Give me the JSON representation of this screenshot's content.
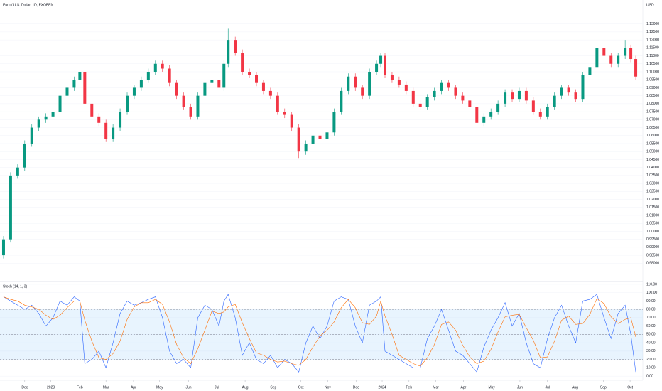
{
  "chart_data": [
    {
      "type": "candlestick",
      "title": "Euro / U.S. Dollar, 1D, FXOPEN",
      "y_label": "USD",
      "up_color": "#089981",
      "down_color": "#f23645",
      "xlim": [
        -5,
        905
      ],
      "ylim": [
        0.969,
        1.145
      ],
      "yticks": [
        {
          "value": 0.98,
          "label": "0.98000"
        },
        {
          "value": 0.985,
          "label": "0.98500"
        },
        {
          "value": 0.99,
          "label": "0.99000"
        },
        {
          "value": 0.995,
          "label": "0.99500"
        },
        {
          "value": 1.0,
          "label": "1.00000"
        },
        {
          "value": 1.005,
          "label": "1.00500"
        },
        {
          "value": 1.01,
          "label": "1.01000"
        },
        {
          "value": 1.015,
          "label": "1.01500"
        },
        {
          "value": 1.02,
          "label": "1.02000"
        },
        {
          "value": 1.025,
          "label": "1.02500"
        },
        {
          "value": 1.03,
          "label": "1.03000"
        },
        {
          "value": 1.035,
          "label": "1.03500"
        },
        {
          "value": 1.04,
          "label": "1.04000"
        },
        {
          "value": 1.045,
          "label": "1.04500"
        },
        {
          "value": 1.05,
          "label": "1.05000"
        },
        {
          "value": 1.055,
          "label": "1.05500"
        },
        {
          "value": 1.06,
          "label": "1.06000"
        },
        {
          "value": 1.065,
          "label": "1.06500"
        },
        {
          "value": 1.07,
          "label": "1.07000"
        },
        {
          "value": 1.075,
          "label": "1.07500"
        },
        {
          "value": 1.08,
          "label": "1.08000"
        },
        {
          "value": 1.085,
          "label": "1.08500"
        },
        {
          "value": 1.09,
          "label": "1.09000"
        },
        {
          "value": 1.095,
          "label": "1.09500"
        },
        {
          "value": 1.1,
          "label": "1.10000"
        },
        {
          "value": 1.105,
          "label": "1.10500"
        },
        {
          "value": 1.11,
          "label": "1.11000"
        },
        {
          "value": 1.115,
          "label": "1.11500"
        },
        {
          "value": 1.12,
          "label": "1.12000"
        },
        {
          "value": 1.125,
          "label": "1.12500"
        },
        {
          "value": 1.13,
          "label": "1.13000"
        }
      ],
      "x": [
        0,
        10,
        20,
        30,
        40,
        50,
        60,
        70,
        80,
        90,
        100,
        108,
        115,
        125,
        135,
        145,
        155,
        165,
        175,
        185,
        195,
        205,
        215,
        225,
        235,
        245,
        255,
        265,
        275,
        285,
        295,
        305,
        312,
        318,
        328,
        338,
        348,
        358,
        368,
        378,
        388,
        398,
        408,
        418,
        428,
        438,
        448,
        458,
        468,
        478,
        488,
        498,
        508,
        518,
        528,
        534,
        540,
        550,
        560,
        570,
        580,
        590,
        600,
        610,
        620,
        630,
        640,
        650,
        660,
        670,
        680,
        690,
        700,
        710,
        720,
        730,
        740,
        750,
        760,
        770,
        780,
        790,
        800,
        810,
        820,
        830,
        840,
        850,
        860,
        870,
        880,
        888,
        895
      ],
      "open": [
        0.985,
        0.995,
        1.035,
        1.04,
        1.055,
        1.065,
        1.07,
        1.072,
        1.075,
        1.085,
        1.09,
        1.095,
        1.1,
        1.08,
        1.072,
        1.068,
        1.058,
        1.065,
        1.075,
        1.085,
        1.09,
        1.095,
        1.1,
        1.105,
        1.102,
        1.093,
        1.085,
        1.078,
        1.072,
        1.085,
        1.093,
        1.095,
        1.09,
        1.105,
        1.12,
        1.112,
        1.1,
        1.098,
        1.093,
        1.088,
        1.085,
        1.075,
        1.073,
        1.065,
        1.05,
        1.055,
        1.06,
        1.058,
        1.062,
        1.075,
        1.088,
        1.097,
        1.09,
        1.085,
        1.1,
        1.105,
        1.11,
        1.098,
        1.095,
        1.092,
        1.088,
        1.08,
        1.078,
        1.084,
        1.088,
        1.093,
        1.09,
        1.085,
        1.082,
        1.078,
        1.068,
        1.072,
        1.075,
        1.08,
        1.087,
        1.083,
        1.088,
        1.082,
        1.075,
        1.072,
        1.078,
        1.085,
        1.09,
        1.087,
        1.083,
        1.098,
        1.103,
        1.115,
        1.11,
        1.105,
        1.11,
        1.115,
        1.108
      ],
      "high": [
        0.997,
        1.037,
        1.042,
        1.057,
        1.067,
        1.072,
        1.074,
        1.077,
        1.087,
        1.092,
        1.097,
        1.103,
        1.102,
        1.082,
        1.074,
        1.07,
        1.067,
        1.077,
        1.087,
        1.092,
        1.097,
        1.102,
        1.107,
        1.107,
        1.104,
        1.095,
        1.087,
        1.08,
        1.087,
        1.095,
        1.097,
        1.097,
        1.107,
        1.127,
        1.122,
        1.114,
        1.102,
        1.1,
        1.095,
        1.09,
        1.087,
        1.077,
        1.075,
        1.067,
        1.057,
        1.062,
        1.062,
        1.064,
        1.077,
        1.09,
        1.099,
        1.099,
        1.092,
        1.102,
        1.107,
        1.112,
        1.112,
        1.1,
        1.097,
        1.094,
        1.09,
        1.082,
        1.086,
        1.09,
        1.095,
        1.095,
        1.092,
        1.087,
        1.084,
        1.08,
        1.074,
        1.077,
        1.082,
        1.089,
        1.089,
        1.09,
        1.09,
        1.084,
        1.077,
        1.08,
        1.087,
        1.092,
        1.092,
        1.089,
        1.1,
        1.105,
        1.12,
        1.117,
        1.112,
        1.112,
        1.12,
        1.117,
        1.11
      ],
      "low": [
        0.983,
        0.993,
        1.033,
        1.038,
        1.053,
        1.063,
        1.068,
        1.07,
        1.073,
        1.083,
        1.088,
        1.093,
        1.078,
        1.07,
        1.066,
        1.056,
        1.056,
        1.063,
        1.073,
        1.083,
        1.088,
        1.093,
        1.098,
        1.1,
        1.091,
        1.083,
        1.076,
        1.07,
        1.07,
        1.083,
        1.091,
        1.088,
        1.088,
        1.103,
        1.11,
        1.098,
        1.096,
        1.091,
        1.086,
        1.083,
        1.073,
        1.071,
        1.063,
        1.046,
        1.048,
        1.053,
        1.056,
        1.056,
        1.06,
        1.073,
        1.086,
        1.088,
        1.083,
        1.083,
        1.098,
        1.103,
        1.096,
        1.093,
        1.09,
        1.086,
        1.078,
        1.076,
        1.076,
        1.082,
        1.086,
        1.088,
        1.083,
        1.08,
        1.076,
        1.066,
        1.066,
        1.07,
        1.073,
        1.078,
        1.081,
        1.081,
        1.08,
        1.073,
        1.07,
        1.07,
        1.076,
        1.083,
        1.085,
        1.081,
        1.081,
        1.096,
        1.101,
        1.108,
        1.103,
        1.103,
        1.108,
        1.106,
        1.095
      ],
      "close": [
        0.995,
        1.035,
        1.04,
        1.055,
        1.065,
        1.07,
        1.072,
        1.075,
        1.085,
        1.09,
        1.095,
        1.1,
        1.08,
        1.072,
        1.068,
        1.058,
        1.065,
        1.075,
        1.085,
        1.09,
        1.095,
        1.1,
        1.105,
        1.102,
        1.093,
        1.085,
        1.078,
        1.072,
        1.085,
        1.093,
        1.095,
        1.09,
        1.105,
        1.12,
        1.112,
        1.1,
        1.098,
        1.093,
        1.088,
        1.085,
        1.075,
        1.073,
        1.065,
        1.05,
        1.055,
        1.06,
        1.058,
        1.062,
        1.075,
        1.088,
        1.097,
        1.09,
        1.085,
        1.1,
        1.105,
        1.11,
        1.098,
        1.095,
        1.092,
        1.088,
        1.08,
        1.078,
        1.084,
        1.088,
        1.093,
        1.09,
        1.085,
        1.082,
        1.078,
        1.068,
        1.072,
        1.075,
        1.08,
        1.087,
        1.083,
        1.088,
        1.082,
        1.075,
        1.072,
        1.078,
        1.085,
        1.09,
        1.087,
        1.083,
        1.098,
        1.103,
        1.115,
        1.11,
        1.105,
        1.11,
        1.115,
        1.108,
        1.097
      ]
    },
    {
      "type": "line",
      "title": "Stoch (14, 1, 3)",
      "xlim": [
        -5,
        905
      ],
      "ylim": [
        -5,
        112.5
      ],
      "levels": [
        80,
        50,
        20
      ],
      "band_color": "#2196f3",
      "yticks": [
        {
          "value": 110,
          "label": "110.00"
        },
        {
          "value": 100,
          "label": "100.00"
        },
        {
          "value": 90,
          "label": "90.00"
        },
        {
          "value": 80,
          "label": "80.00"
        },
        {
          "value": 70,
          "label": "70.00"
        },
        {
          "value": 60,
          "label": "60.00"
        },
        {
          "value": 50,
          "label": "50.00"
        },
        {
          "value": 40,
          "label": "40.00"
        },
        {
          "value": 30,
          "label": "30.00"
        },
        {
          "value": 20,
          "label": "20.00"
        },
        {
          "value": 10,
          "label": "10.00"
        },
        {
          "value": 0,
          "label": "0.00"
        }
      ],
      "xticks": [
        {
          "value": 30,
          "label": "Dec"
        },
        {
          "value": 67,
          "label": "2023"
        },
        {
          "value": 108,
          "label": "Feb"
        },
        {
          "value": 145,
          "label": "Mar"
        },
        {
          "value": 184,
          "label": "Apr"
        },
        {
          "value": 221,
          "label": "May"
        },
        {
          "value": 262,
          "label": "Jun"
        },
        {
          "value": 302,
          "label": "Jul"
        },
        {
          "value": 342,
          "label": "Aug"
        },
        {
          "value": 382,
          "label": "Sep"
        },
        {
          "value": 421,
          "label": "Oct"
        },
        {
          "value": 459,
          "label": "Nov"
        },
        {
          "value": 499,
          "label": "Dec"
        },
        {
          "value": 536,
          "label": "2024"
        },
        {
          "value": 574,
          "label": "Feb"
        },
        {
          "value": 612,
          "label": "Mar"
        },
        {
          "value": 651,
          "label": "Apr"
        },
        {
          "value": 691,
          "label": "May"
        },
        {
          "value": 731,
          "label": "Jun"
        },
        {
          "value": 770,
          "label": "Jul"
        },
        {
          "value": 809,
          "label": "Aug"
        },
        {
          "value": 849,
          "label": "Sep"
        },
        {
          "value": 887,
          "label": "Oct"
        }
      ],
      "x": [
        0,
        10,
        20,
        30,
        40,
        50,
        60,
        70,
        80,
        90,
        100,
        108,
        115,
        125,
        135,
        145,
        155,
        165,
        175,
        185,
        195,
        205,
        215,
        225,
        235,
        245,
        255,
        265,
        275,
        285,
        295,
        305,
        312,
        318,
        328,
        338,
        348,
        358,
        368,
        378,
        388,
        398,
        408,
        418,
        428,
        438,
        448,
        458,
        468,
        478,
        488,
        498,
        508,
        518,
        528,
        534,
        540,
        550,
        560,
        570,
        580,
        590,
        600,
        610,
        620,
        630,
        640,
        650,
        660,
        670,
        680,
        690,
        700,
        710,
        720,
        730,
        740,
        750,
        760,
        770,
        780,
        790,
        800,
        810,
        820,
        830,
        840,
        850,
        860,
        870,
        880,
        888,
        895
      ],
      "series": [
        {
          "color": "#2962ff",
          "values": [
            95,
            90,
            85,
            80,
            85,
            75,
            60,
            70,
            90,
            85,
            95,
            90,
            15,
            20,
            30,
            10,
            40,
            75,
            90,
            85,
            88,
            92,
            95,
            70,
            30,
            15,
            20,
            10,
            70,
            85,
            80,
            60,
            90,
            98,
            70,
            25,
            40,
            20,
            15,
            25,
            10,
            20,
            15,
            5,
            40,
            60,
            45,
            60,
            90,
            95,
            92,
            60,
            40,
            85,
            90,
            95,
            30,
            25,
            20,
            15,
            10,
            10,
            45,
            60,
            80,
            55,
            30,
            25,
            15,
            5,
            35,
            55,
            70,
            88,
            60,
            75,
            40,
            15,
            10,
            45,
            70,
            85,
            60,
            40,
            90,
            92,
            98,
            70,
            45,
            75,
            85,
            50,
            5
          ]
        },
        {
          "color": "#ff6d00",
          "values": [
            95,
            92,
            90,
            85,
            83,
            80,
            73,
            68,
            73,
            82,
            90,
            90,
            67,
            42,
            22,
            20,
            27,
            42,
            68,
            83,
            88,
            88,
            92,
            86,
            65,
            38,
            22,
            15,
            33,
            55,
            78,
            75,
            77,
            83,
            86,
            64,
            45,
            28,
            25,
            20,
            17,
            18,
            15,
            13,
            20,
            35,
            48,
            55,
            65,
            82,
            92,
            82,
            64,
            62,
            72,
            90,
            72,
            50,
            25,
            20,
            15,
            12,
            22,
            38,
            62,
            65,
            55,
            37,
            23,
            15,
            18,
            32,
            53,
            71,
            73,
            74,
            58,
            43,
            22,
            23,
            42,
            67,
            72,
            62,
            63,
            74,
            93,
            87,
            71,
            63,
            68,
            70,
            47
          ]
        }
      ]
    }
  ]
}
